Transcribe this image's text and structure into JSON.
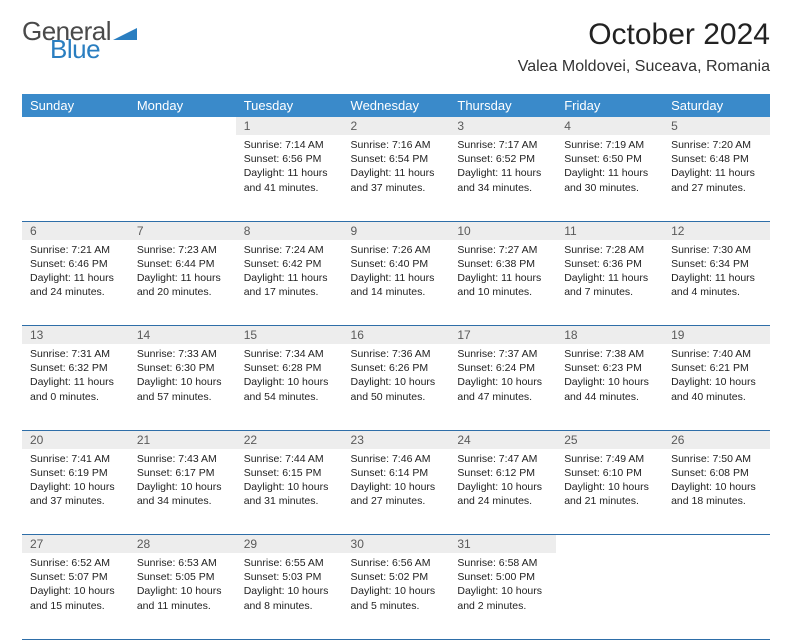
{
  "logo": {
    "text1": "General",
    "text2": "Blue",
    "color1": "#4a4a4a",
    "color2": "#2a7ec0",
    "tri_color": "#2a7ec0"
  },
  "title": "October 2024",
  "location": "Valea Moldovei, Suceava, Romania",
  "header_bg": "#3a8aca",
  "daynum_bg": "#ededed",
  "border_color": "#2e6ea8",
  "columns": [
    "Sunday",
    "Monday",
    "Tuesday",
    "Wednesday",
    "Thursday",
    "Friday",
    "Saturday"
  ],
  "weeks": [
    [
      null,
      null,
      {
        "n": "1",
        "sr": "7:14 AM",
        "ss": "6:56 PM",
        "dl": "11 hours and 41 minutes."
      },
      {
        "n": "2",
        "sr": "7:16 AM",
        "ss": "6:54 PM",
        "dl": "11 hours and 37 minutes."
      },
      {
        "n": "3",
        "sr": "7:17 AM",
        "ss": "6:52 PM",
        "dl": "11 hours and 34 minutes."
      },
      {
        "n": "4",
        "sr": "7:19 AM",
        "ss": "6:50 PM",
        "dl": "11 hours and 30 minutes."
      },
      {
        "n": "5",
        "sr": "7:20 AM",
        "ss": "6:48 PM",
        "dl": "11 hours and 27 minutes."
      }
    ],
    [
      {
        "n": "6",
        "sr": "7:21 AM",
        "ss": "6:46 PM",
        "dl": "11 hours and 24 minutes."
      },
      {
        "n": "7",
        "sr": "7:23 AM",
        "ss": "6:44 PM",
        "dl": "11 hours and 20 minutes."
      },
      {
        "n": "8",
        "sr": "7:24 AM",
        "ss": "6:42 PM",
        "dl": "11 hours and 17 minutes."
      },
      {
        "n": "9",
        "sr": "7:26 AM",
        "ss": "6:40 PM",
        "dl": "11 hours and 14 minutes."
      },
      {
        "n": "10",
        "sr": "7:27 AM",
        "ss": "6:38 PM",
        "dl": "11 hours and 10 minutes."
      },
      {
        "n": "11",
        "sr": "7:28 AM",
        "ss": "6:36 PM",
        "dl": "11 hours and 7 minutes."
      },
      {
        "n": "12",
        "sr": "7:30 AM",
        "ss": "6:34 PM",
        "dl": "11 hours and 4 minutes."
      }
    ],
    [
      {
        "n": "13",
        "sr": "7:31 AM",
        "ss": "6:32 PM",
        "dl": "11 hours and 0 minutes."
      },
      {
        "n": "14",
        "sr": "7:33 AM",
        "ss": "6:30 PM",
        "dl": "10 hours and 57 minutes."
      },
      {
        "n": "15",
        "sr": "7:34 AM",
        "ss": "6:28 PM",
        "dl": "10 hours and 54 minutes."
      },
      {
        "n": "16",
        "sr": "7:36 AM",
        "ss": "6:26 PM",
        "dl": "10 hours and 50 minutes."
      },
      {
        "n": "17",
        "sr": "7:37 AM",
        "ss": "6:24 PM",
        "dl": "10 hours and 47 minutes."
      },
      {
        "n": "18",
        "sr": "7:38 AM",
        "ss": "6:23 PM",
        "dl": "10 hours and 44 minutes."
      },
      {
        "n": "19",
        "sr": "7:40 AM",
        "ss": "6:21 PM",
        "dl": "10 hours and 40 minutes."
      }
    ],
    [
      {
        "n": "20",
        "sr": "7:41 AM",
        "ss": "6:19 PM",
        "dl": "10 hours and 37 minutes."
      },
      {
        "n": "21",
        "sr": "7:43 AM",
        "ss": "6:17 PM",
        "dl": "10 hours and 34 minutes."
      },
      {
        "n": "22",
        "sr": "7:44 AM",
        "ss": "6:15 PM",
        "dl": "10 hours and 31 minutes."
      },
      {
        "n": "23",
        "sr": "7:46 AM",
        "ss": "6:14 PM",
        "dl": "10 hours and 27 minutes."
      },
      {
        "n": "24",
        "sr": "7:47 AM",
        "ss": "6:12 PM",
        "dl": "10 hours and 24 minutes."
      },
      {
        "n": "25",
        "sr": "7:49 AM",
        "ss": "6:10 PM",
        "dl": "10 hours and 21 minutes."
      },
      {
        "n": "26",
        "sr": "7:50 AM",
        "ss": "6:08 PM",
        "dl": "10 hours and 18 minutes."
      }
    ],
    [
      {
        "n": "27",
        "sr": "6:52 AM",
        "ss": "5:07 PM",
        "dl": "10 hours and 15 minutes."
      },
      {
        "n": "28",
        "sr": "6:53 AM",
        "ss": "5:05 PM",
        "dl": "10 hours and 11 minutes."
      },
      {
        "n": "29",
        "sr": "6:55 AM",
        "ss": "5:03 PM",
        "dl": "10 hours and 8 minutes."
      },
      {
        "n": "30",
        "sr": "6:56 AM",
        "ss": "5:02 PM",
        "dl": "10 hours and 5 minutes."
      },
      {
        "n": "31",
        "sr": "6:58 AM",
        "ss": "5:00 PM",
        "dl": "10 hours and 2 minutes."
      },
      null,
      null
    ]
  ],
  "labels": {
    "sunrise": "Sunrise:",
    "sunset": "Sunset:",
    "daylight": "Daylight:"
  }
}
